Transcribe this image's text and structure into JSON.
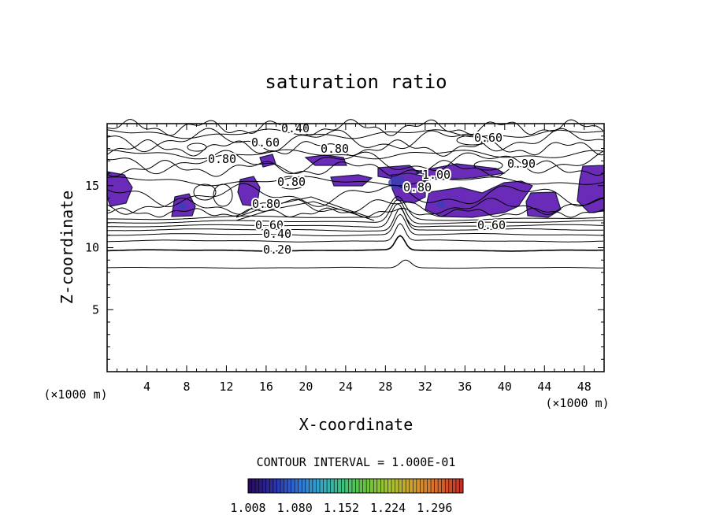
{
  "chart_data": {
    "type": "contour",
    "title": "saturation ratio",
    "xlabel": "X-coordinate",
    "ylabel": "Z-coordinate",
    "x_unit": "(×1000 m)",
    "y_unit": "(×1000 m)",
    "xlim": [
      0,
      50
    ],
    "ylim": [
      0,
      20
    ],
    "x_ticks": [
      4,
      8,
      12,
      16,
      20,
      24,
      28,
      32,
      36,
      40,
      44,
      48
    ],
    "y_ticks": [
      5,
      10,
      15
    ],
    "contour_levels": [
      0.2,
      0.3,
      0.4,
      0.5,
      0.6,
      0.7,
      0.8,
      0.9,
      1.0
    ],
    "contour_labels": [
      "0.40",
      "0.60",
      "0.80",
      "0.60",
      "0.80",
      "0.90",
      "0.80",
      "1.00",
      "0.80",
      "0.80",
      "0.60",
      "0.60",
      "0.40",
      "0.20"
    ],
    "contour_interval_text": "CONTOUR INTERVAL = 1.000E-01",
    "colorbar": {
      "min": 1.008,
      "max": 1.34,
      "colors": [
        "#2a0a5e",
        "#2b2fa8",
        "#2f6fd6",
        "#33a6c8",
        "#3fc27a",
        "#6ec23a",
        "#a8c232",
        "#d09a30",
        "#d86a2e",
        "#c43028"
      ],
      "tick_labels": [
        "1.008",
        "1.080",
        "1.152",
        "1.224",
        "1.296"
      ]
    },
    "fill_color": "#6a2bb8"
  }
}
